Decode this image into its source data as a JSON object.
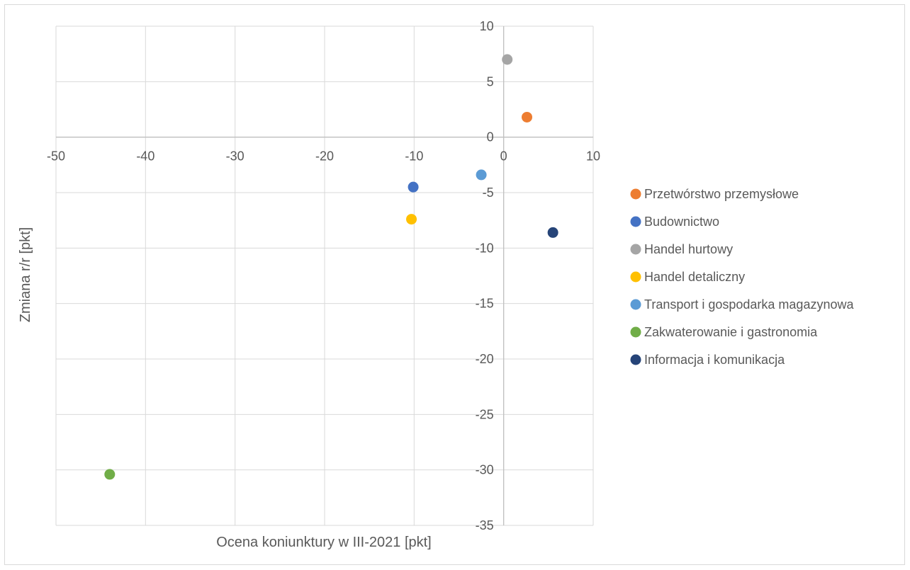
{
  "chart_data": {
    "type": "scatter",
    "title": "",
    "xlabel": "Ocena koniunktury w III-2021 [pkt]",
    "ylabel": "Zmiana r/r [pkt]",
    "xlim": [
      -50,
      10
    ],
    "ylim": [
      -35,
      10
    ],
    "x_ticks": [
      "-50",
      "-40",
      "-30",
      "-20",
      "-10",
      "0",
      "10"
    ],
    "y_ticks": [
      "10",
      "5",
      "0",
      "-5",
      "-10",
      "-15",
      "-20",
      "-25",
      "-30",
      "-35"
    ],
    "grid": true,
    "legend_position": "right",
    "series": [
      {
        "name": "Przetwórstwo przemysłowe",
        "color": "#ED7D31",
        "x": [
          2.6
        ],
        "y": [
          1.8
        ]
      },
      {
        "name": "Budownictwo",
        "color": "#4472C4",
        "x": [
          -10.1
        ],
        "y": [
          -4.5
        ]
      },
      {
        "name": "Handel hurtowy",
        "color": "#A5A5A5",
        "x": [
          0.4
        ],
        "y": [
          7.0
        ]
      },
      {
        "name": "Handel detaliczny",
        "color": "#FFC000",
        "x": [
          -10.3
        ],
        "y": [
          -7.4
        ]
      },
      {
        "name": "Transport i gospodarka magazynowa",
        "color": "#5B9BD5",
        "x": [
          -2.5
        ],
        "y": [
          -3.4
        ]
      },
      {
        "name": "Zakwaterowanie i gastronomia",
        "color": "#70AD47",
        "x": [
          -44.0
        ],
        "y": [
          -30.4
        ]
      },
      {
        "name": "Informacja i komunikacja",
        "color": "#264478",
        "x": [
          5.5
        ],
        "y": [
          -8.6
        ]
      }
    ]
  }
}
